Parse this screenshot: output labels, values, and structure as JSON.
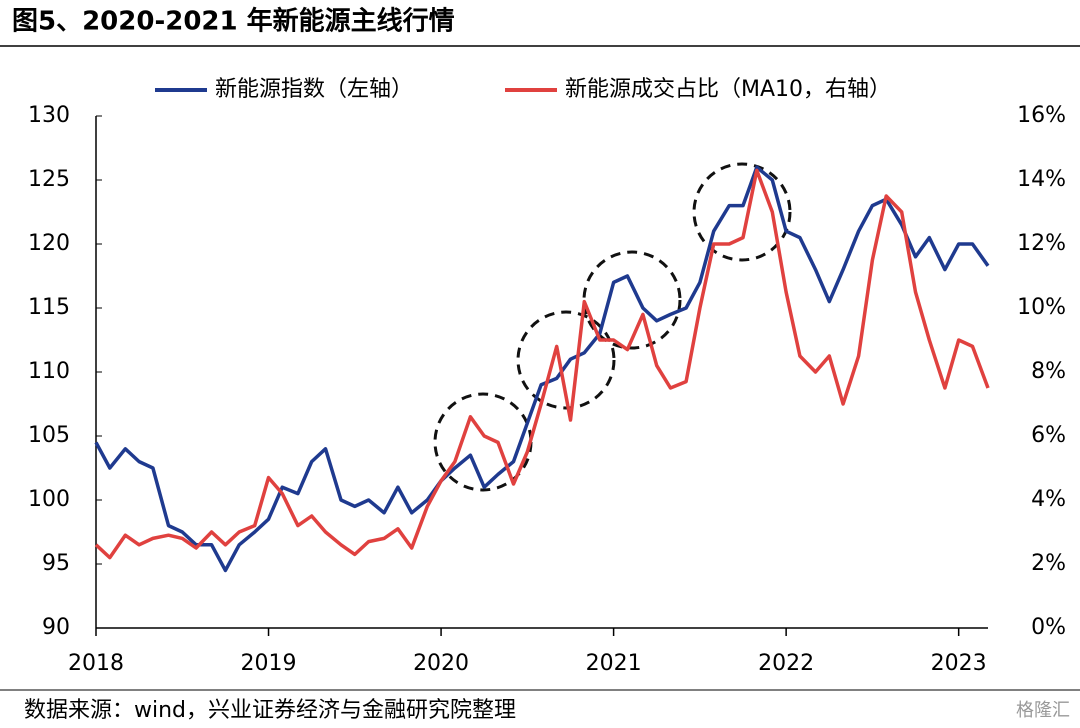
{
  "chart_data": {
    "type": "line",
    "title": "图5、2020-2021 年新能源主线行情",
    "source": "数据来源：wind，兴业证券经济与金融研究院整理",
    "watermark": "格隆汇",
    "x": [
      2018.0,
      2018.08,
      2018.17,
      2018.25,
      2018.33,
      2018.42,
      2018.5,
      2018.58,
      2018.67,
      2018.75,
      2018.83,
      2018.92,
      2019.0,
      2019.08,
      2019.17,
      2019.25,
      2019.33,
      2019.42,
      2019.5,
      2019.58,
      2019.67,
      2019.75,
      2019.83,
      2019.92,
      2020.0,
      2020.08,
      2020.17,
      2020.25,
      2020.33,
      2020.42,
      2020.5,
      2020.58,
      2020.67,
      2020.75,
      2020.83,
      2020.92,
      2021.0,
      2021.08,
      2021.17,
      2021.25,
      2021.33,
      2021.42,
      2021.5,
      2021.58,
      2021.67,
      2021.75,
      2021.83,
      2021.92,
      2022.0,
      2022.08,
      2022.17,
      2022.25,
      2022.33,
      2022.42,
      2022.5,
      2022.58,
      2022.67,
      2022.75,
      2022.83,
      2022.92,
      2023.0,
      2023.08,
      2023.17
    ],
    "series": [
      {
        "name": "新能源指数（左轴）",
        "color": "#1f3a8f",
        "axis": "y",
        "values": [
          104.5,
          102.5,
          104,
          103,
          102.5,
          98,
          97.5,
          96.5,
          96.5,
          94.5,
          96.5,
          97.5,
          98.5,
          101,
          100.5,
          103,
          104,
          100,
          99.5,
          100,
          99,
          101,
          99,
          100,
          101.5,
          102.5,
          103.5,
          101,
          102,
          103,
          106,
          109,
          109.5,
          111,
          111.5,
          113,
          117,
          117.5,
          115,
          114,
          114.5,
          115,
          117,
          121,
          123,
          123,
          126,
          125,
          121,
          120.5,
          118,
          115.5,
          118,
          121,
          123,
          123.5,
          121.5,
          119,
          120.5,
          118,
          120,
          120,
          118.3
        ]
      },
      {
        "name": "新能源成交占比（MA10，右轴）",
        "color": "#e0413f",
        "axis": "y2",
        "values": [
          2.6,
          2.2,
          2.9,
          2.6,
          2.8,
          2.9,
          2.8,
          2.5,
          3.0,
          2.6,
          3.0,
          3.2,
          4.7,
          4.2,
          3.2,
          3.5,
          3.0,
          2.6,
          2.3,
          2.7,
          2.8,
          3.1,
          2.5,
          3.8,
          4.6,
          5.2,
          6.6,
          6.0,
          5.8,
          4.5,
          5.5,
          7.0,
          8.8,
          6.5,
          10.2,
          9.0,
          9.0,
          8.7,
          9.8,
          8.2,
          7.5,
          7.7,
          10,
          12,
          12,
          12.2,
          14.3,
          13,
          10.5,
          8.5,
          8.0,
          8.5,
          7.0,
          8.5,
          11.5,
          13.5,
          13.0,
          10.5,
          9.0,
          7.5,
          9.0,
          8.8,
          7.5
        ]
      }
    ],
    "xlim": [
      2018,
      2023.17
    ],
    "xticks": [
      2018,
      2019,
      2020,
      2021,
      2022,
      2023
    ],
    "ylim": [
      90,
      130
    ],
    "yticks": [
      90,
      95,
      100,
      105,
      110,
      115,
      120,
      125,
      130
    ],
    "y2lim": [
      0,
      16
    ],
    "y2ticks": [
      {
        "value": 0,
        "label": "0%"
      },
      {
        "value": 2,
        "label": "2%"
      },
      {
        "value": 4,
        "label": "4%"
      },
      {
        "value": 6,
        "label": "6%"
      },
      {
        "value": 8,
        "label": "8%"
      },
      {
        "value": 10,
        "label": "10%"
      },
      {
        "value": 12,
        "label": "12%"
      },
      {
        "value": 14,
        "label": "14%"
      },
      {
        "value": 16,
        "label": "16%"
      }
    ],
    "legend": "top"
  }
}
